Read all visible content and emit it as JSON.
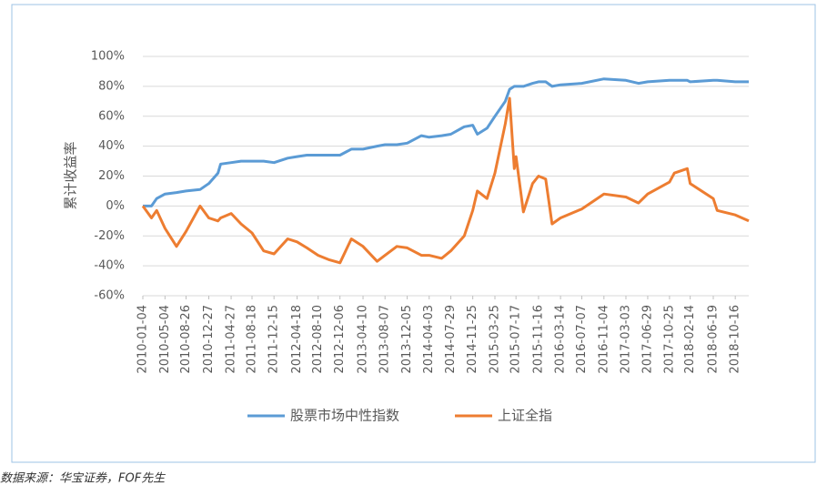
{
  "chart_data": {
    "type": "line",
    "y_label": "累计收益率",
    "source": "数据来源：华宝证券，FOF先生",
    "x": [
      "2010-01-04",
      "2010-02-20",
      "2010-03-20",
      "2010-05-04",
      "2010-07-05",
      "2010-08-26",
      "2010-11-10",
      "2010-12-27",
      "2011-02-15",
      "2011-03-01",
      "2011-04-27",
      "2011-06-20",
      "2011-08-18",
      "2011-10-20",
      "2011-12-15",
      "2012-02-27",
      "2012-04-18",
      "2012-06-10",
      "2012-08-10",
      "2012-10-10",
      "2012-12-06",
      "2013-02-06",
      "2013-04-10",
      "2013-06-25",
      "2013-08-07",
      "2013-10-10",
      "2013-12-05",
      "2014-02-20",
      "2014-04-03",
      "2014-06-10",
      "2014-07-29",
      "2014-10-10",
      "2014-11-25",
      "2014-12-20",
      "2015-02-10",
      "2015-03-25",
      "2015-05-20",
      "2015-06-12",
      "2015-07-08",
      "2015-07-17",
      "2015-08-26",
      "2015-10-15",
      "2015-11-16",
      "2015-12-25",
      "2016-01-28",
      "2016-03-14",
      "2016-07-07",
      "2016-11-04",
      "2017-03-03",
      "2017-05-10",
      "2017-06-29",
      "2017-10-25",
      "2017-11-20",
      "2018-01-29",
      "2018-02-14",
      "2018-06-19",
      "2018-07-10",
      "2018-10-16",
      "2018-12-28"
    ],
    "series": [
      {
        "name": "股票市场中性指数",
        "color": "#5b9bd5",
        "values": [
          0,
          0,
          5,
          8,
          9,
          10,
          11,
          15,
          22,
          28,
          29,
          30,
          30,
          30,
          29,
          32,
          33,
          34,
          34,
          34,
          34,
          38,
          38,
          40,
          41,
          41,
          42,
          47,
          46,
          47,
          48,
          53,
          54,
          48,
          52,
          60,
          70,
          78,
          80,
          80,
          80,
          82,
          83,
          83,
          80,
          81,
          82,
          85,
          84,
          82,
          83,
          84,
          84,
          84,
          83,
          84,
          84,
          83,
          83
        ]
      },
      {
        "name": "上证全指",
        "color": "#ed7d31",
        "values": [
          0,
          -8,
          -3,
          -15,
          -27,
          -17,
          0,
          -8,
          -10,
          -8,
          -5,
          -12,
          -18,
          -30,
          -32,
          -22,
          -24,
          -28,
          -33,
          -36,
          -38,
          -22,
          -27,
          -37,
          -33,
          -27,
          -28,
          -33,
          -33,
          -35,
          -30,
          -20,
          -3,
          10,
          5,
          22,
          55,
          72,
          25,
          33,
          -4,
          15,
          20,
          18,
          -12,
          -8,
          -2,
          8,
          6,
          2,
          8,
          16,
          22,
          25,
          15,
          5,
          -3,
          -6,
          -10
        ]
      }
    ],
    "xlim": [
      "2010-01-04",
      "2018-12-28"
    ],
    "xticks": [
      "2010-01-04",
      "2010-05-04",
      "2010-08-26",
      "2010-12-27",
      "2011-04-27",
      "2011-08-18",
      "2011-12-15",
      "2012-04-18",
      "2012-08-10",
      "2012-12-06",
      "2013-04-10",
      "2013-08-07",
      "2013-12-05",
      "2014-04-03",
      "2014-07-29",
      "2014-11-25",
      "2015-03-25",
      "2015-07-17",
      "2015-11-16",
      "2016-03-14",
      "2016-07-07",
      "2016-11-04",
      "2017-03-03",
      "2017-06-29",
      "2017-10-25",
      "2018-02-14",
      "2018-06-19",
      "2018-10-16"
    ],
    "ylim": [
      -60,
      100
    ],
    "yticks": [
      {
        "value": -60,
        "label": "-60%"
      },
      {
        "value": -40,
        "label": "-40%"
      },
      {
        "value": -20,
        "label": "-20%"
      },
      {
        "value": 0,
        "label": "0%"
      },
      {
        "value": 20,
        "label": "20%"
      },
      {
        "value": 40,
        "label": "40%"
      },
      {
        "value": 60,
        "label": "60%"
      },
      {
        "value": 80,
        "label": "80%"
      },
      {
        "value": 100,
        "label": "100%"
      }
    ],
    "grid": true,
    "legend": "bottom"
  }
}
